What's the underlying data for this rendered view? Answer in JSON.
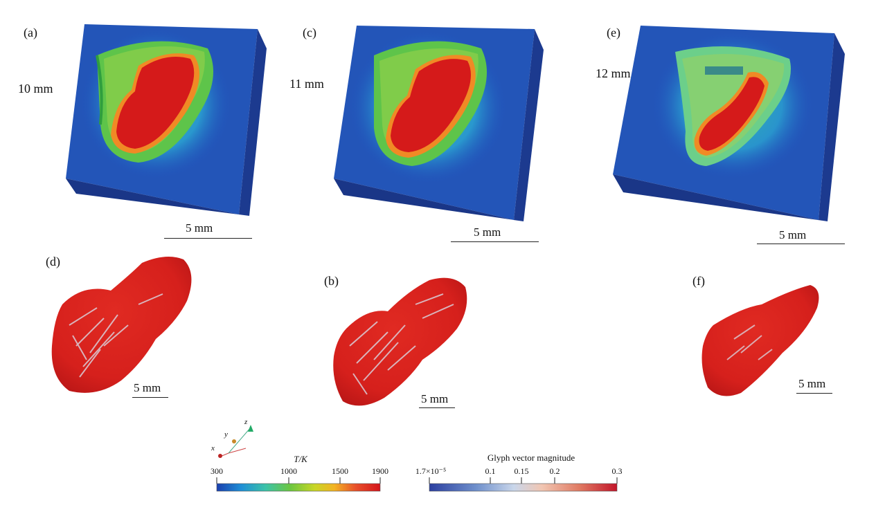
{
  "panels": {
    "a": {
      "label": "(a)",
      "height": "10 mm",
      "scale": "5 mm"
    },
    "c": {
      "label": "(c)",
      "height": "11 mm",
      "scale": "5 mm"
    },
    "e": {
      "label": "(e)",
      "height": "12 mm",
      "scale": "5 mm"
    },
    "d": {
      "label": "(d)",
      "scale": "5 mm"
    },
    "b": {
      "label": "(b)",
      "scale": "5 mm"
    },
    "f": {
      "label": "(f)",
      "scale": "5 mm"
    }
  },
  "axes_triad": {
    "x": "x",
    "y": "y",
    "z": "z"
  },
  "temperature_bar": {
    "title": "T/K",
    "ticks": [
      "300",
      "1000",
      "1500",
      "1900"
    ],
    "colors": [
      "#1a3fae",
      "#1f8fd6",
      "#3cc3a8",
      "#6cc640",
      "#c8d626",
      "#f3b323",
      "#e8502a",
      "#d4141b"
    ]
  },
  "glyph_bar": {
    "title": "Glyph vector magnitude",
    "ticks": [
      "1.7×10⁻⁵",
      "0.1",
      "0.15",
      "0.2",
      "0.3"
    ],
    "colors": [
      "#2b3fa0",
      "#6f90cc",
      "#c9d6ea",
      "#f1c6b2",
      "#e07a63",
      "#c2152a"
    ]
  }
}
